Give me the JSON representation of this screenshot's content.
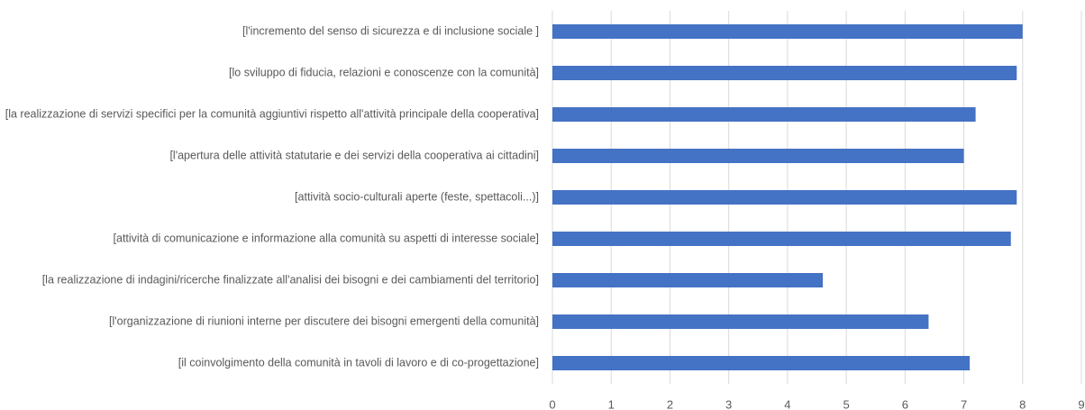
{
  "chart_data": {
    "type": "bar",
    "orientation": "horizontal",
    "categories": [
      "[l'incremento del senso di sicurezza e di inclusione sociale ]",
      "[lo sviluppo di fiducia, relazioni e conoscenze con la comunità]",
      "[la realizzazione di servizi specifici per la comunità aggiuntivi rispetto all'attività principale della cooperativa]",
      "[l'apertura delle attività statutarie e dei servizi della cooperativa ai cittadini]",
      "[attività socio-culturali aperte (feste, spettacoli...)]",
      "[attività di comunicazione e informazione alla comunità su aspetti di interesse sociale]",
      "[la realizzazione di indagini/ricerche finalizzate all'analisi dei bisogni e dei cambiamenti del territorio]",
      "[l'organizzazione di riunioni interne per discutere dei bisogni emergenti della comunità]",
      "[il coinvolgimento della comunità in tavoli di lavoro e di co-progettazione]"
    ],
    "values": [
      8.0,
      7.9,
      7.2,
      7.0,
      7.9,
      7.8,
      4.6,
      6.4,
      7.1
    ],
    "color": "#4472c4",
    "xlim": [
      0,
      9
    ],
    "xticks": [
      0,
      1,
      2,
      3,
      4,
      5,
      6,
      7,
      8,
      9
    ],
    "grid": true
  }
}
